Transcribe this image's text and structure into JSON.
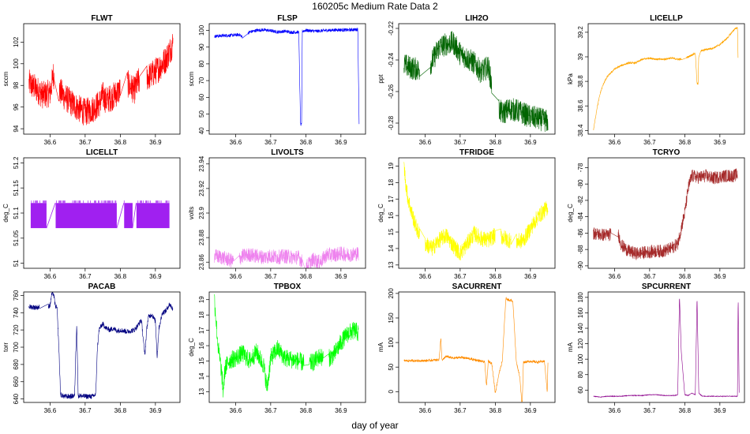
{
  "figure": {
    "title": "160205c   Medium Rate Data 2",
    "xlabel": "day of year"
  },
  "chart_data": [
    {
      "type": "line",
      "name": "FLWT",
      "title": "FLWT",
      "ylabel": "sccm",
      "color": "#ff0000",
      "mode": "noise",
      "xlim": [
        36.525,
        36.97
      ],
      "ylim": [
        93.5,
        103.7
      ],
      "xticks": [
        36.6,
        36.7,
        36.8,
        36.9
      ],
      "yticks": [
        94,
        96,
        98,
        100,
        102
      ],
      "x": [
        36.54,
        36.56,
        36.58,
        36.6,
        36.61,
        36.62,
        36.64,
        36.66,
        36.68,
        36.7,
        36.72,
        36.74,
        36.75,
        36.76,
        36.78,
        36.8,
        36.82,
        36.84,
        36.85,
        36.87,
        36.89,
        36.91,
        36.93,
        36.95
      ],
      "y": [
        98.2,
        97.7,
        97.1,
        97.3,
        99.0,
        97.8,
        97.0,
        96.4,
        95.9,
        95.5,
        95.8,
        96.3,
        97.1,
        96.6,
        97.0,
        97.6,
        98.2,
        97.5,
        98.3,
        98.6,
        99.0,
        99.6,
        100.4,
        101.9
      ],
      "noise": 1.3,
      "gaps": [
        [
          36.612,
          36.625
        ],
        [
          36.8,
          36.82
        ],
        [
          36.855,
          36.875
        ]
      ]
    },
    {
      "type": "line",
      "name": "FLSP",
      "title": "FLSP",
      "ylabel": "sccm",
      "color": "#0000ff",
      "mode": "noise",
      "xlim": [
        36.525,
        36.97
      ],
      "ylim": [
        38,
        104
      ],
      "xticks": [
        36.6,
        36.7,
        36.8,
        36.9
      ],
      "yticks": [
        40,
        50,
        60,
        70,
        80,
        90,
        100
      ],
      "x": [
        36.54,
        36.56,
        36.58,
        36.6,
        36.61,
        36.62,
        36.64,
        36.66,
        36.68,
        36.7,
        36.72,
        36.74,
        36.76,
        36.78,
        36.785,
        36.788,
        36.79,
        36.8,
        36.83,
        36.86,
        36.89,
        36.92,
        36.94,
        36.948,
        36.952
      ],
      "y": [
        96.5,
        96.8,
        97.0,
        97.2,
        97.5,
        96.0,
        99.0,
        100.0,
        100.3,
        99.8,
        99.0,
        99.5,
        98.8,
        99.0,
        43.5,
        43.5,
        99.5,
        100.0,
        99.5,
        100.0,
        100.3,
        100.2,
        100.5,
        100.5,
        40.5
      ],
      "noise": 1.0,
      "gaps": [
        [
          36.62,
          36.635
        ]
      ]
    },
    {
      "type": "line",
      "name": "LIH2O",
      "title": "LIH2O",
      "ylabel": "ppt",
      "color": "#006400",
      "mode": "noise",
      "xlim": [
        36.525,
        36.97
      ],
      "ylim": [
        -0.287,
        -0.217
      ],
      "xticks": [
        36.6,
        36.7,
        36.8,
        36.9
      ],
      "yticks": [
        -0.28,
        -0.26,
        -0.24,
        -0.22
      ],
      "x": [
        36.54,
        36.56,
        36.58,
        36.6,
        36.62,
        36.64,
        36.66,
        36.68,
        36.7,
        36.72,
        36.74,
        36.76,
        36.78,
        36.8,
        36.82,
        36.84,
        36.86,
        36.88,
        36.9,
        36.92,
        36.95
      ],
      "y": [
        -0.243,
        -0.245,
        -0.246,
        -0.247,
        -0.241,
        -0.232,
        -0.23,
        -0.229,
        -0.236,
        -0.239,
        -0.242,
        -0.248,
        -0.244,
        -0.268,
        -0.274,
        -0.271,
        -0.272,
        -0.274,
        -0.276,
        -0.277,
        -0.279
      ],
      "noise": 0.0075,
      "gaps": [
        [
          36.585,
          36.615
        ],
        [
          36.79,
          36.81
        ]
      ]
    },
    {
      "type": "line",
      "name": "LICELLP",
      "title": "LICELLP",
      "ylabel": "kPa",
      "color": "#ffa500",
      "mode": "noise",
      "xlim": [
        36.525,
        36.97
      ],
      "ylim": [
        38.37,
        39.27
      ],
      "xticks": [
        36.6,
        36.7,
        36.8,
        36.9
      ],
      "yticks": [
        38.4,
        38.6,
        38.8,
        39.0,
        39.2
      ],
      "x": [
        36.54,
        36.55,
        36.56,
        36.57,
        36.58,
        36.6,
        36.62,
        36.64,
        36.66,
        36.68,
        36.7,
        36.72,
        36.74,
        36.76,
        36.78,
        36.79,
        36.81,
        36.83,
        36.835,
        36.838,
        36.84,
        36.86,
        36.88,
        36.9,
        36.92,
        36.94,
        36.95,
        36.952
      ],
      "y": [
        38.4,
        38.58,
        38.71,
        38.79,
        38.84,
        38.9,
        38.93,
        38.95,
        38.95,
        38.98,
        38.99,
        38.98,
        38.98,
        38.99,
        38.98,
        38.98,
        39.0,
        39.03,
        38.78,
        38.78,
        39.04,
        39.06,
        39.07,
        39.1,
        39.15,
        39.22,
        39.24,
        38.96
      ],
      "noise": 0.008,
      "gaps": [
        [
          36.79,
          36.805
        ],
        [
          36.84,
          36.845
        ]
      ]
    },
    {
      "type": "line",
      "name": "LICELLT",
      "title": "LICELLT",
      "ylabel": "deg_C",
      "color": "#a020f0",
      "mode": "band",
      "xlim": [
        36.525,
        36.97
      ],
      "ylim": [
        50.99,
        51.21
      ],
      "xticks": [
        36.6,
        36.7,
        36.8,
        36.9
      ],
      "yticks": [
        51.0,
        51.05,
        51.1,
        51.15,
        51.2
      ],
      "x": [
        36.545,
        36.59,
        36.615,
        36.79,
        36.81,
        36.835,
        36.845,
        36.94
      ],
      "y": [
        51.09,
        51.09,
        51.09,
        51.09,
        51.09,
        51.09,
        51.09,
        51.09
      ],
      "band": [
        51.07,
        51.12
      ],
      "gaps": [
        [
          36.59,
          36.615
        ],
        [
          36.79,
          36.81
        ],
        [
          36.835,
          36.845
        ]
      ]
    },
    {
      "type": "line",
      "name": "LIVOLTS",
      "title": "LIVOLTS",
      "ylabel": "volts",
      "color": "#ee82ee",
      "mode": "noise",
      "xlim": [
        36.525,
        36.97
      ],
      "ylim": [
        23.855,
        23.945
      ],
      "xticks": [
        36.6,
        36.7,
        36.8,
        36.9
      ],
      "yticks": [
        23.86,
        23.88,
        23.9,
        23.92,
        23.94
      ],
      "x": [
        36.54,
        36.56,
        36.58,
        36.6,
        36.62,
        36.64,
        36.66,
        36.68,
        36.7,
        36.72,
        36.74,
        36.76,
        36.78,
        36.8,
        36.82,
        36.84,
        36.86,
        36.88,
        36.9,
        36.92,
        36.95
      ],
      "y": [
        23.865,
        23.864,
        23.862,
        23.86,
        23.865,
        23.866,
        23.865,
        23.864,
        23.865,
        23.864,
        23.865,
        23.864,
        23.864,
        23.856,
        23.862,
        23.86,
        23.866,
        23.866,
        23.867,
        23.866,
        23.867
      ],
      "noise": 0.006,
      "gaps": [
        [
          36.595,
          36.61
        ],
        [
          36.79,
          36.8
        ]
      ]
    },
    {
      "type": "line",
      "name": "TFRIDGE",
      "title": "TFRIDGE",
      "ylabel": "deg_C",
      "color": "#ffff00",
      "mode": "noise",
      "xlim": [
        36.525,
        36.97
      ],
      "ylim": [
        12.8,
        19.5
      ],
      "xticks": [
        36.6,
        36.7,
        36.8,
        36.9
      ],
      "yticks": [
        13,
        14,
        15,
        16,
        17,
        18,
        19
      ],
      "x": [
        36.54,
        36.545,
        36.55,
        36.56,
        36.57,
        36.58,
        36.6,
        36.62,
        36.64,
        36.66,
        36.68,
        36.7,
        36.72,
        36.74,
        36.76,
        36.78,
        36.8,
        36.82,
        36.84,
        36.86,
        36.88,
        36.9,
        36.92,
        36.94,
        36.95
      ],
      "y": [
        19.0,
        18.0,
        17.2,
        16.3,
        15.6,
        15.0,
        14.3,
        14.0,
        14.5,
        14.8,
        14.2,
        13.7,
        14.3,
        14.9,
        14.6,
        14.5,
        14.8,
        14.7,
        14.5,
        14.4,
        14.5,
        15.2,
        15.9,
        16.3,
        16.5
      ],
      "noise": 0.5,
      "gaps": [
        [
          36.585,
          36.6
        ],
        [
          36.8,
          36.815
        ],
        [
          36.845,
          36.86
        ]
      ]
    },
    {
      "type": "line",
      "name": "TCRYO",
      "title": "TCRYO",
      "ylabel": "deg_C",
      "color": "#a52a2a",
      "mode": "noise",
      "xlim": [
        36.525,
        36.97
      ],
      "ylim": [
        -90.3,
        -76.8
      ],
      "xticks": [
        36.6,
        36.7,
        36.8,
        36.9
      ],
      "yticks": [
        -90,
        -88,
        -86,
        -84,
        -82,
        -80,
        -78
      ],
      "x": [
        36.54,
        36.56,
        36.58,
        36.6,
        36.61,
        36.62,
        36.64,
        36.66,
        36.68,
        36.7,
        36.72,
        36.74,
        36.76,
        36.78,
        36.8,
        36.81,
        36.82,
        36.84,
        36.86,
        36.88,
        36.9,
        36.92,
        36.94,
        36.95
      ],
      "y": [
        -86.0,
        -86.2,
        -86.2,
        -86.1,
        -86.0,
        -87.5,
        -88.2,
        -88.5,
        -88.4,
        -88.3,
        -88.2,
        -88.2,
        -87.9,
        -87.3,
        -83.5,
        -80.5,
        -79.0,
        -79.2,
        -79.0,
        -79.3,
        -79.1,
        -79.0,
        -79.0,
        -78.8
      ],
      "noise": 0.8,
      "gaps": [
        [
          36.59,
          36.61
        ]
      ]
    },
    {
      "type": "line",
      "name": "PACAB",
      "title": "PACAB",
      "ylabel": "torr",
      "color": "#000080",
      "mode": "noise",
      "xlim": [
        36.525,
        36.97
      ],
      "ylim": [
        636,
        764
      ],
      "xticks": [
        36.6,
        36.7,
        36.8,
        36.9
      ],
      "yticks": [
        640,
        660,
        680,
        700,
        720,
        740,
        760
      ],
      "x": [
        36.54,
        36.56,
        36.58,
        36.6,
        36.605,
        36.61,
        36.615,
        36.62,
        36.625,
        36.63,
        36.64,
        36.66,
        36.67,
        36.673,
        36.676,
        36.68,
        36.7,
        36.72,
        36.73,
        36.735,
        36.74,
        36.75,
        36.76,
        36.77,
        36.78,
        36.79,
        36.8,
        36.82,
        36.84,
        36.85,
        36.86,
        36.87,
        36.875,
        36.88,
        36.89,
        36.9,
        36.905,
        36.91,
        36.92,
        36.93,
        36.94,
        36.95
      ],
      "y": [
        747,
        746,
        747,
        748,
        762,
        762,
        748,
        745,
        700,
        645,
        643,
        643,
        644,
        690,
        728,
        644,
        643,
        643,
        645,
        700,
        721,
        727,
        722,
        720,
        722,
        719,
        720,
        718,
        720,
        725,
        732,
        690,
        720,
        735,
        738,
        730,
        688,
        722,
        740,
        742,
        750,
        744
      ],
      "noise": 3.0,
      "gaps": [
        [
          36.57,
          36.595
        ]
      ]
    },
    {
      "type": "line",
      "name": "TPBOX",
      "title": "TPBOX",
      "ylabel": "deg_C",
      "color": "#00ff00",
      "mode": "noise",
      "xlim": [
        36.525,
        36.97
      ],
      "ylim": [
        12.3,
        19.5
      ],
      "xticks": [
        36.6,
        36.7,
        36.8,
        36.9
      ],
      "yticks": [
        13,
        14,
        15,
        16,
        17,
        18,
        19
      ],
      "x": [
        36.54,
        36.545,
        36.55,
        36.56,
        36.565,
        36.57,
        36.58,
        36.6,
        36.62,
        36.64,
        36.66,
        36.68,
        36.69,
        36.7,
        36.72,
        36.74,
        36.76,
        36.78,
        36.8,
        36.82,
        36.84,
        36.86,
        36.88,
        36.9,
        36.92,
        36.94,
        36.95
      ],
      "y": [
        19.0,
        17.5,
        16.0,
        14.3,
        13.0,
        14.5,
        15.0,
        15.2,
        15.5,
        15.0,
        15.6,
        14.7,
        13.2,
        15.2,
        15.8,
        15.2,
        15.1,
        15.0,
        14.8,
        14.9,
        15.3,
        15.1,
        15.4,
        16.2,
        16.8,
        17.0,
        16.8
      ],
      "noise": 0.6,
      "gaps": [
        [
          36.795,
          36.81
        ],
        [
          36.85,
          36.865
        ]
      ]
    },
    {
      "type": "line",
      "name": "SACURRENT",
      "title": "SACURRENT",
      "ylabel": "mA",
      "color": "#ff8c00",
      "mode": "noise",
      "xlim": [
        36.525,
        36.97
      ],
      "ylim": [
        -22,
        203
      ],
      "xticks": [
        36.6,
        36.7,
        36.8,
        36.9
      ],
      "yticks": [
        0,
        50,
        100,
        150,
        200
      ],
      "x": [
        36.54,
        36.56,
        36.58,
        36.6,
        36.62,
        36.64,
        36.645,
        36.648,
        36.651,
        36.66,
        36.68,
        36.7,
        36.72,
        36.74,
        36.76,
        36.77,
        36.775,
        36.78,
        36.79,
        36.8,
        36.81,
        36.82,
        36.83,
        36.835,
        36.84,
        36.85,
        36.86,
        36.87,
        36.875,
        36.877,
        36.88,
        36.9,
        36.92,
        36.94,
        36.948,
        36.95
      ],
      "y": [
        63,
        63,
        63,
        63,
        64,
        65,
        110,
        65,
        65,
        72,
        68,
        70,
        68,
        65,
        62,
        60,
        10,
        62,
        58,
        -3,
        35,
        62,
        190,
        188,
        186,
        185,
        60,
        30,
        -20,
        -20,
        60,
        62,
        60,
        62,
        -1,
        60
      ],
      "noise": 2.5,
      "gaps": []
    },
    {
      "type": "line",
      "name": "SPCURRENT",
      "title": "SPCURRENT",
      "ylabel": "mA",
      "color": "#8b008b",
      "mode": "noise",
      "xlim": [
        36.525,
        36.97
      ],
      "ylim": [
        44,
        187
      ],
      "xticks": [
        36.6,
        36.7,
        36.8,
        36.9
      ],
      "yticks": [
        60,
        80,
        100,
        120,
        140,
        160,
        180
      ],
      "x": [
        36.54,
        36.56,
        36.58,
        36.6,
        36.62,
        36.64,
        36.66,
        36.68,
        36.7,
        36.72,
        36.74,
        36.76,
        36.77,
        36.78,
        36.785,
        36.79,
        36.8,
        36.81,
        36.82,
        36.83,
        36.835,
        36.84,
        36.85,
        36.86,
        36.88,
        36.9,
        36.92,
        36.94,
        36.95,
        36.952,
        36.955
      ],
      "y": [
        52,
        51,
        52,
        52,
        52,
        53,
        53,
        53,
        54,
        54,
        53,
        53,
        53,
        54,
        182,
        110,
        54,
        53,
        56,
        54,
        180,
        56,
        52,
        52,
        52,
        52,
        52,
        52,
        52,
        182,
        52
      ],
      "noise": 0.4,
      "gaps": []
    }
  ]
}
